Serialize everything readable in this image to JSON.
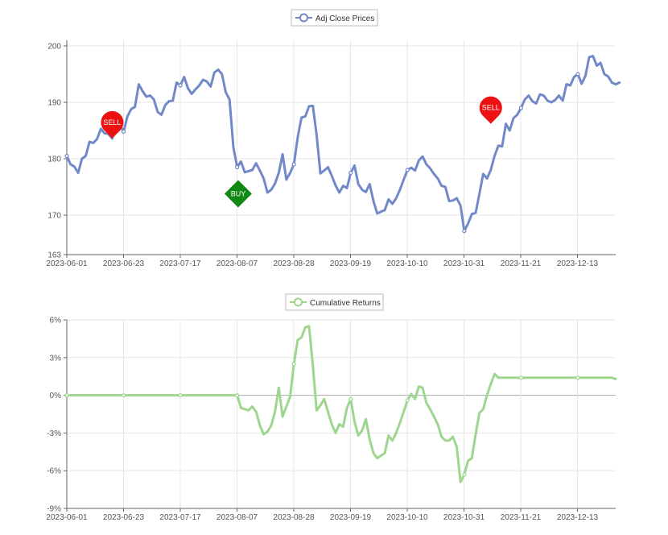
{
  "colors": {
    "price_line": "#7289c9",
    "returns_line": "#9fd68f",
    "sell": "#ee1111",
    "buy": "#118811",
    "grid": "#e6e6e6",
    "axis": "#666666",
    "zero_line": "#aaaaaa"
  },
  "chart_data": [
    {
      "type": "line",
      "legend": "Adj Close Prices",
      "legend_position": "top-center",
      "grid": true,
      "x_tick_labels": [
        "2023-06-01",
        "2023-06-23",
        "2023-07-17",
        "2023-08-07",
        "2023-08-28",
        "2023-09-19",
        "2023-10-10",
        "2023-10-31",
        "2023-11-21",
        "2023-12-13"
      ],
      "y_ticks": [
        163,
        170,
        180,
        190,
        200
      ],
      "y_tick_labels": [
        "163",
        "170",
        "180",
        "190",
        "200"
      ],
      "ylim": [
        163,
        201
      ],
      "x_index_range": [
        0,
        145
      ],
      "series": [
        {
          "name": "Adj Close Prices",
          "values": [
            180.5,
            179,
            178.6,
            177.5,
            180,
            180.5,
            183,
            182.8,
            183.5,
            185.3,
            184.5,
            184.4,
            183.6,
            185.5,
            186,
            184.8,
            187.5,
            188.8,
            189.2,
            193.2,
            192,
            191,
            191.2,
            190.5,
            188.3,
            187.8,
            189.5,
            190.2,
            190.3,
            193.5,
            193,
            194.5,
            192.5,
            191.5,
            192.3,
            193,
            194,
            193.7,
            192.8,
            195.3,
            195.8,
            195,
            191.8,
            190.5,
            182,
            178.5,
            179.5,
            177.6,
            177.8,
            178,
            179.2,
            177.9,
            176.5,
            174,
            174.5,
            175.6,
            177.5,
            180.8,
            176.3,
            177.5,
            179,
            183.8,
            187.3,
            187.5,
            189.3,
            189.4,
            184.2,
            177.4,
            177.9,
            178.5,
            177,
            175.3,
            174,
            175.2,
            174.8,
            177.5,
            178.8,
            175.5,
            174.5,
            174.1,
            175.5,
            172.5,
            170.3,
            170.6,
            170.9,
            172.8,
            172,
            173,
            174.5,
            176.3,
            178,
            178.4,
            177.9,
            179.7,
            180.4,
            179,
            178.3,
            177.3,
            176.5,
            175.2,
            175,
            172.5,
            172.6,
            173,
            171.7,
            167.2,
            168.5,
            170.2,
            170.4,
            173.8,
            177.3,
            176.5,
            178,
            180.5,
            182.3,
            182.2,
            186.2,
            185,
            187.2,
            187.8,
            189,
            190.5,
            191.2,
            190.2,
            189.8,
            191.4,
            191.2,
            190.3,
            190,
            190.4,
            191.2,
            190.3,
            193.2,
            193,
            194.5,
            195,
            193.3,
            194.7,
            198,
            198.2,
            196.5,
            197,
            195,
            194.6,
            193.5,
            193.2,
            193.5
          ]
        }
      ],
      "signals": [
        {
          "label": "SELL",
          "index": 12,
          "value": 183.6
        },
        {
          "label": "BUY",
          "index": 44,
          "value": 178.5
        },
        {
          "label": "SELL",
          "index": 112,
          "value": 186.2
        }
      ]
    },
    {
      "type": "line",
      "legend": "Cumulative Returns",
      "legend_position": "top-center",
      "grid": true,
      "x_tick_labels": [
        "2023-06-01",
        "2023-06-23",
        "2023-07-17",
        "2023-08-07",
        "2023-08-28",
        "2023-09-19",
        "2023-10-10",
        "2023-10-31",
        "2023-11-21",
        "2023-12-13"
      ],
      "y_ticks": [
        -9,
        -6,
        -3,
        0,
        3,
        6
      ],
      "y_tick_labels": [
        "-9%",
        "-6%",
        "-3%",
        "0%",
        "3%",
        "6%"
      ],
      "ylim": [
        -9,
        6
      ],
      "x_index_range": [
        0,
        145
      ],
      "series": [
        {
          "name": "Cumulative Returns",
          "values": [
            0,
            0,
            0,
            0,
            0,
            0,
            0,
            0,
            0,
            0,
            0,
            0,
            0,
            0,
            0,
            0,
            0,
            0,
            0,
            0,
            0,
            0,
            0,
            0,
            0,
            0,
            0,
            0,
            0,
            0,
            0,
            0,
            0,
            0,
            0,
            0,
            0,
            0,
            0,
            0,
            0,
            0,
            0,
            0,
            0,
            0,
            -1,
            -1.1,
            -1.2,
            -0.9,
            -1.3,
            -2.4,
            -3.1,
            -2.9,
            -2.4,
            -1.3,
            0.6,
            -1.7,
            -0.9,
            -0.1,
            2.5,
            4.4,
            4.6,
            5.4,
            5.5,
            2.4,
            -1.2,
            -0.8,
            -0.3,
            -1.3,
            -2.3,
            -3,
            -2.3,
            -2.5,
            -1,
            -0.3,
            -2.1,
            -3.2,
            -2.8,
            -1.9,
            -3.5,
            -4.6,
            -5,
            -4.8,
            -4.6,
            -3.2,
            -3.6,
            -3,
            -2.2,
            -1.3,
            -0.4,
            0.1,
            -0.3,
            0.7,
            0.6,
            -0.6,
            -1.1,
            -1.7,
            -2.3,
            -3.3,
            -3.6,
            -3.6,
            -3.3,
            -4.1,
            -6.9,
            -6.3,
            -5.2,
            -5,
            -3.1,
            -1.4,
            -1.1,
            0,
            0.9,
            1.7,
            1.4,
            1.4,
            1.4,
            1.4,
            1.4,
            1.4,
            1.4,
            1.4,
            1.4,
            1.4,
            1.4,
            1.4,
            1.4,
            1.4,
            1.4,
            1.4,
            1.4,
            1.4,
            1.4,
            1.4,
            1.4,
            1.4,
            1.4,
            1.4,
            1.4,
            1.4,
            1.4,
            1.4,
            1.4,
            1.4,
            1.4,
            1.3
          ]
        }
      ]
    }
  ]
}
